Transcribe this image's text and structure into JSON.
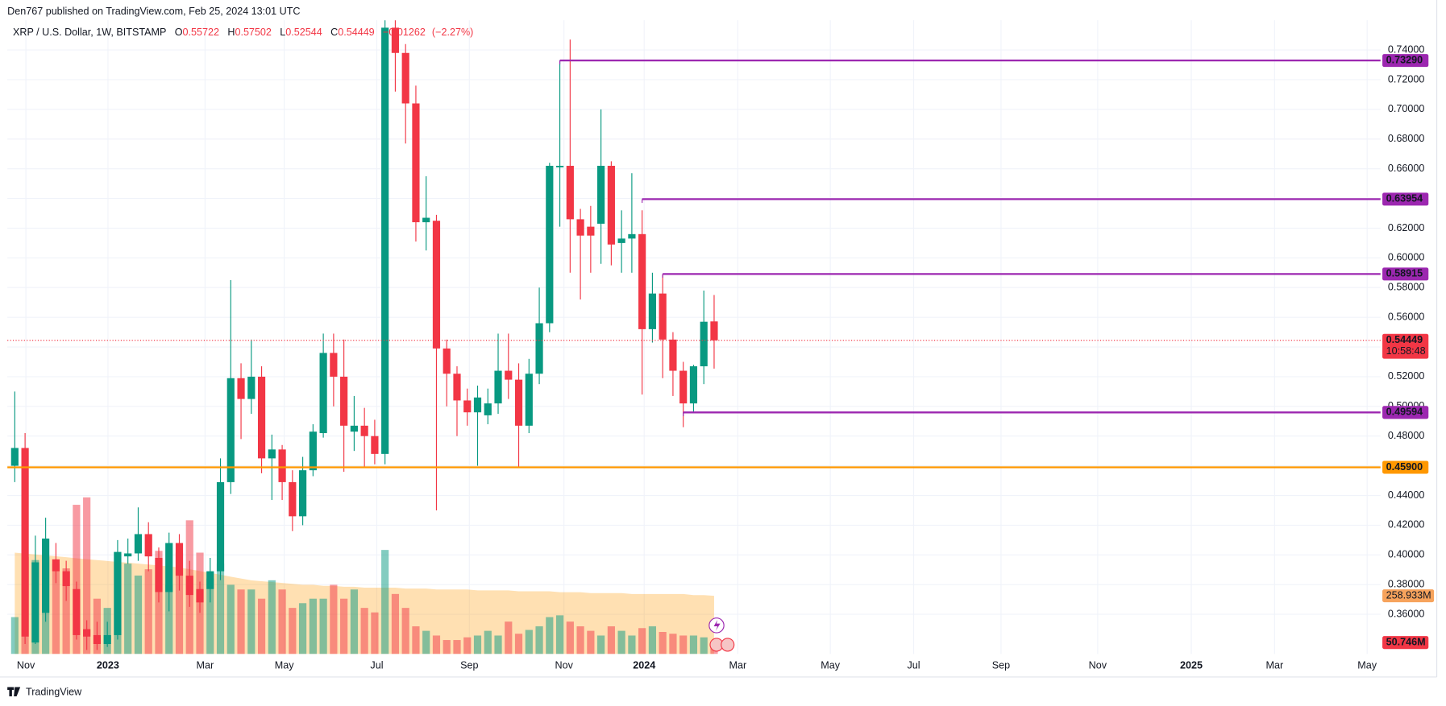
{
  "header": {
    "published": "Den767 published on TradingView.com, Feb 25, 2024 13:01 UTC"
  },
  "chart_data": {
    "type": "candlestick",
    "title": "XRP / U.S. Dollar, 1W, BITSTAMP",
    "legend_keys": [
      "O",
      "H",
      "L",
      "C"
    ],
    "change": {
      "value": -0.01262,
      "label": "−0.01262"
    },
    "change_pct": {
      "value": -2.27,
      "label": "(−2.27%)"
    },
    "up_color": "#089981",
    "down_color": "#f23645",
    "open": [
      0.46,
      0.472,
      0.341,
      0.361,
      0.397,
      0.389,
      0.377,
      0.35,
      0.346,
      0.34,
      0.346,
      0.399,
      0.401,
      0.414,
      0.398,
      0.375,
      0.408,
      0.386,
      0.377,
      0.377,
      0.389,
      0.449,
      0.519,
      0.505,
      0.52,
      0.465,
      0.471,
      0.449,
      0.426,
      0.457,
      0.482,
      0.536,
      0.52,
      0.483,
      0.487,
      0.48,
      0.468,
      0.755,
      0.738,
      0.704,
      0.624,
      0.625,
      0.539,
      0.522,
      0.504,
      0.496,
      0.494,
      0.502,
      0.524,
      0.518,
      0.487,
      0.522,
      0.556,
      0.661,
      0.662,
      0.626,
      0.621,
      0.623,
      0.662,
      0.61,
      0.613,
      0.616,
      0.552,
      0.576,
      0.545,
      0.524,
      0.502,
      0.527,
      0.55722
    ],
    "high": [
      0.51,
      0.482,
      0.413,
      0.425,
      0.408,
      0.396,
      0.382,
      0.356,
      0.355,
      0.355,
      0.41,
      0.411,
      0.432,
      0.422,
      0.405,
      0.415,
      0.414,
      0.396,
      0.382,
      0.398,
      0.465,
      0.585,
      0.529,
      0.545,
      0.527,
      0.481,
      0.474,
      0.457,
      0.466,
      0.488,
      0.549,
      0.549,
      0.545,
      0.507,
      0.499,
      0.491,
      0.76,
      0.76,
      0.744,
      0.716,
      0.655,
      0.629,
      0.545,
      0.527,
      0.512,
      0.514,
      0.512,
      0.549,
      0.549,
      0.529,
      0.532,
      0.58,
      0.664,
      0.733,
      0.747,
      0.633,
      0.635,
      0.7,
      0.665,
      0.632,
      0.657,
      0.632,
      0.59,
      0.589,
      0.55,
      0.53,
      0.528,
      0.578,
      0.57502
    ],
    "low": [
      0.449,
      0.34,
      0.34,
      0.355,
      0.381,
      0.369,
      0.343,
      0.336,
      0.336,
      0.338,
      0.343,
      0.394,
      0.396,
      0.389,
      0.368,
      0.362,
      0.376,
      0.365,
      0.361,
      0.368,
      0.383,
      0.441,
      0.478,
      0.495,
      0.455,
      0.437,
      0.437,
      0.416,
      0.42,
      0.453,
      0.479,
      0.5,
      0.456,
      0.47,
      0.459,
      0.461,
      0.461,
      0.712,
      0.677,
      0.611,
      0.605,
      0.43,
      0.5,
      0.48,
      0.487,
      0.46,
      0.488,
      0.495,
      0.505,
      0.459,
      0.482,
      0.515,
      0.55,
      0.621,
      0.59,
      0.572,
      0.59,
      0.596,
      0.595,
      0.59,
      0.59,
      0.508,
      0.543,
      0.519,
      0.507,
      0.486,
      0.496,
      0.515,
      0.52544
    ],
    "close": [
      0.472,
      0.345,
      0.395,
      0.411,
      0.389,
      0.379,
      0.346,
      0.345,
      0.34,
      0.346,
      0.402,
      0.401,
      0.414,
      0.399,
      0.375,
      0.408,
      0.386,
      0.373,
      0.368,
      0.389,
      0.449,
      0.519,
      0.505,
      0.52,
      0.465,
      0.471,
      0.449,
      0.426,
      0.457,
      0.483,
      0.536,
      0.52,
      0.487,
      0.487,
      0.48,
      0.468,
      0.755,
      0.738,
      0.704,
      0.624,
      0.627,
      0.539,
      0.522,
      0.504,
      0.496,
      0.506,
      0.502,
      0.524,
      0.518,
      0.487,
      0.522,
      0.556,
      0.662,
      0.662,
      0.626,
      0.615,
      0.615,
      0.662,
      0.609,
      0.613,
      0.616,
      0.552,
      0.576,
      0.545,
      0.524,
      0.502,
      0.527,
      0.557,
      0.54449
    ],
    "volume": {
      "values": [
        164,
        431,
        418,
        431,
        402,
        381,
        664,
        697,
        246,
        205,
        451,
        402,
        349,
        377,
        459,
        308,
        451,
        595,
        451,
        336,
        402,
        308,
        287,
        287,
        246,
        328,
        287,
        205,
        226,
        246,
        246,
        308,
        246,
        287,
        205,
        185,
        463,
        267,
        205,
        123,
        103,
        82,
        62,
        62,
        74,
        82,
        103,
        82,
        144,
        90,
        107,
        123,
        164,
        172,
        144,
        123,
        103,
        82,
        123,
        103,
        82,
        115,
        123,
        98,
        90,
        82,
        82,
        74,
        50.746
      ],
      "label": "50.746M"
    },
    "volume_ma": {
      "values": [
        451,
        447,
        443,
        439,
        435,
        431,
        426,
        422,
        418,
        414,
        410,
        406,
        402,
        398,
        394,
        390,
        385,
        377,
        369,
        361,
        353,
        344,
        336,
        328,
        324,
        320,
        316,
        312,
        308,
        308,
        303,
        303,
        299,
        299,
        295,
        295,
        295,
        295,
        291,
        291,
        291,
        287,
        287,
        287,
        287,
        283,
        283,
        283,
        283,
        279,
        279,
        279,
        279,
        275,
        275,
        275,
        271,
        271,
        271,
        271,
        267,
        267,
        267,
        267,
        267,
        267,
        262,
        262,
        258.933
      ],
      "label": "258.933M",
      "color": "#ff9800"
    },
    "xlim": [
      -0.72,
      132.8
    ],
    "xticks": [
      {
        "value": 1.08,
        "label": "Nov"
      },
      {
        "value": 9.06,
        "label": "2023"
      },
      {
        "value": 18.5,
        "label": "Mar"
      },
      {
        "value": 26.2,
        "label": "May"
      },
      {
        "value": 35.2,
        "label": "Jul"
      },
      {
        "value": 44.2,
        "label": "Sep"
      },
      {
        "value": 53.4,
        "label": "Nov"
      },
      {
        "value": 61.2,
        "label": "2024"
      },
      {
        "value": 70.3,
        "label": "Mar"
      },
      {
        "value": 79.3,
        "label": "May"
      },
      {
        "value": 87.4,
        "label": "Jul"
      },
      {
        "value": 95.9,
        "label": "Sep"
      },
      {
        "value": 105.3,
        "label": "Nov"
      },
      {
        "value": 114.4,
        "label": "2025"
      },
      {
        "value": 122.5,
        "label": "Mar"
      },
      {
        "value": 131.5,
        "label": "May"
      }
    ],
    "ylim": [
      0.3333,
      0.76
    ],
    "yticks": [
      {
        "value": 0.36,
        "label": "0.36000"
      },
      {
        "value": 0.38,
        "label": "0.38000"
      },
      {
        "value": 0.4,
        "label": "0.40000"
      },
      {
        "value": 0.42,
        "label": "0.42000"
      },
      {
        "value": 0.44,
        "label": "0.44000"
      },
      {
        "value": 0.46,
        "label": "0.46000"
      },
      {
        "value": 0.48,
        "label": "0.48000"
      },
      {
        "value": 0.5,
        "label": "0.50000"
      },
      {
        "value": 0.52,
        "label": "0.52000"
      },
      {
        "value": 0.54,
        "label": "0.54000"
      },
      {
        "value": 0.56,
        "label": "0.56000"
      },
      {
        "value": 0.58,
        "label": "0.58000"
      },
      {
        "value": 0.6,
        "label": "0.60000"
      },
      {
        "value": 0.62,
        "label": "0.62000"
      },
      {
        "value": 0.64,
        "label": "0.64000"
      },
      {
        "value": 0.66,
        "label": "0.66000"
      },
      {
        "value": 0.68,
        "label": "0.68000"
      },
      {
        "value": 0.7,
        "label": "0.70000"
      },
      {
        "value": 0.72,
        "label": "0.72000"
      },
      {
        "value": 0.74,
        "label": "0.74000"
      }
    ],
    "grid": true,
    "levels": [
      {
        "value": 0.7329,
        "label": "0.73290",
        "color": "#9c27b0"
      },
      {
        "value": 0.63954,
        "label": "0.63954",
        "color": "#9c27b0"
      },
      {
        "value": 0.58915,
        "label": "0.58915",
        "color": "#9c27b0"
      },
      {
        "value": 0.49594,
        "label": "0.49594",
        "color": "#9c27b0"
      },
      {
        "value": 0.459,
        "label": "0.45900",
        "color": "#ff9800"
      }
    ],
    "last_price": {
      "value": 0.54449,
      "countdown": "10:58:48"
    }
  },
  "footer": {
    "brand": "TradingView"
  }
}
